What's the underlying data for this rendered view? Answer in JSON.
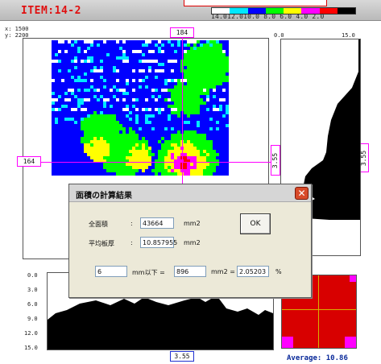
{
  "title": "ITEM:14-2",
  "scale": {
    "labels": "14.012.010.0 8.0  6.0  4.0  2.0",
    "colors": [
      "#ffffff",
      "#00e8ff",
      "#0000ff",
      "#00ff00",
      "#ffff00",
      "#ff00ff",
      "#ff0000",
      "#000000"
    ]
  },
  "coords": {
    "x": "x: 1500",
    "y": "y: 2200"
  },
  "crosshair": {
    "x_label": "184",
    "y_label": "164",
    "right_value": "3.55",
    "bottom_value": "3.55",
    "right_value_2": "3.55"
  },
  "right_profile": {
    "min_label": "0.0",
    "max_label": "15.0"
  },
  "bottom_profile": {
    "ticks": [
      "0.0",
      "3.0",
      "6.0",
      "9.0",
      "12.0",
      "15.0"
    ]
  },
  "average": "Average: 10.86",
  "dialog": {
    "title": "面積の計算結果",
    "total_area_label": "全面積",
    "total_area_value": "43664",
    "unit_mm2": "mm2",
    "avg_thickness_label": "平均板厚",
    "avg_thickness_value": "10.857955",
    "unit_mm2_b": "mm2",
    "colon": ":",
    "threshold_value": "6",
    "threshold_text": "mm以下 =",
    "below_area_value": "896",
    "below_area_unit": "mm2 =",
    "percent_value": "2.05203",
    "percent_unit": "%",
    "ok_label": "OK",
    "close_glyph": "✕"
  }
}
